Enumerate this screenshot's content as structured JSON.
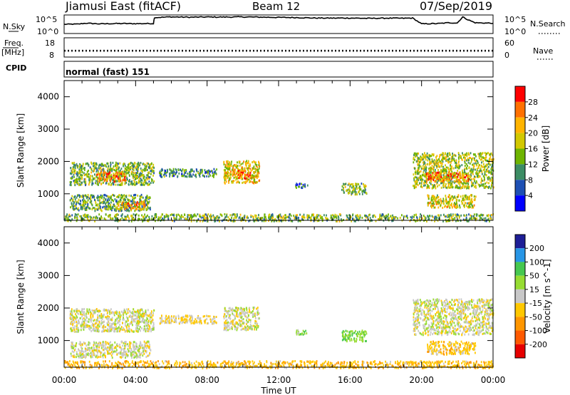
{
  "header": {
    "station": "Jiamusi East (fitACF)",
    "beam": "Beam 12",
    "date": "07/Sep/2019"
  },
  "noise_panel": {
    "left_label": "N.Sky",
    "left_ticks": [
      "10^5",
      "10^0"
    ],
    "right_label": "N.Search",
    "right_ticks": [
      "10^5",
      "10^0"
    ]
  },
  "freq_panel": {
    "left_label_1": "Freq.",
    "left_label_2": "[MHz]",
    "left_ticks": [
      "18",
      "8"
    ],
    "right_label": "Nave",
    "right_ticks": [
      "60",
      "0"
    ]
  },
  "cpid_panel": {
    "label": "CPID",
    "value": "normal (fast) 151"
  },
  "power_panel": {
    "ylabel": "Slant Range [km]",
    "colorbar_label": "Power [dB]",
    "colorbar_ticks": [
      "28",
      "24",
      "20",
      "16",
      "12",
      "8",
      "4"
    ],
    "colorbar_colors": [
      "#ff0000",
      "#ff7000",
      "#ffb400",
      "#d2c800",
      "#6eb400",
      "#3c8c64",
      "#1e50b4",
      "#0000ff"
    ]
  },
  "velocity_panel": {
    "ylabel": "Slant Range [km]",
    "colorbar_label": "Velocity [m s^-1]",
    "colorbar_ticks": [
      "200",
      "100",
      "50",
      "15",
      "-15",
      "-50",
      "-100",
      "-200"
    ],
    "colorbar_colors": [
      "#1e1e96",
      "#2896e6",
      "#46c850",
      "#96dc32",
      "#c8c8c8",
      "#ffc800",
      "#ff9600",
      "#ff5a00",
      "#e60000"
    ]
  },
  "x_axis": {
    "label": "Time UT",
    "ticks": [
      "00:00",
      "04:00",
      "08:00",
      "12:00",
      "16:00",
      "20:00",
      "00:00"
    ]
  },
  "chart_data": [
    {
      "type": "line",
      "title": "N.Sky",
      "y_scale": "log",
      "ylim": [
        1,
        100000
      ],
      "x_hours": [
        0,
        0.8,
        1.2,
        2,
        3,
        4,
        5.0,
        5.05,
        6,
        7,
        8,
        9,
        10,
        11,
        12,
        13,
        14,
        15,
        16,
        17,
        18,
        19,
        19.5,
        20,
        21,
        21.5,
        22,
        22.3,
        22.6,
        23,
        24
      ],
      "values": [
        300,
        350,
        600,
        400,
        500,
        450,
        500,
        20000,
        30000,
        25000,
        28000,
        27000,
        30000,
        26000,
        22000,
        20000,
        15000,
        14000,
        15000,
        12000,
        14000,
        13000,
        15000,
        400,
        500,
        800,
        700,
        30000,
        5000,
        800,
        600
      ]
    },
    {
      "type": "line",
      "title": "Freq. / Nave",
      "x_hours": [
        0,
        24
      ],
      "series": [
        {
          "name": "Freq.",
          "ylim": [
            8,
            18
          ],
          "values": [
            11.5,
            11.5
          ]
        },
        {
          "name": "Nave",
          "ylim": [
            0,
            60
          ],
          "values": [
            18,
            18
          ]
        }
      ]
    },
    {
      "type": "heatmap",
      "title": "Power [dB]",
      "xlabel": "Time UT",
      "ylabel": "Slant Range [km]",
      "xlim": [
        0,
        24
      ],
      "ylim": [
        180,
        4500
      ],
      "y_ticks": [
        1000,
        2000,
        3000,
        4000
      ],
      "colorbar_range": [
        0,
        30
      ],
      "scatter_regions": [
        {
          "t0": 0.3,
          "t1": 5.0,
          "r0": 1300,
          "r1": 2000,
          "typical_db": 12
        },
        {
          "t0": 1.8,
          "t1": 3.4,
          "r0": 1400,
          "r1": 1700,
          "typical_db": 22
        },
        {
          "t0": 0.3,
          "t1": 4.8,
          "r0": 500,
          "r1": 1000,
          "typical_db": 10
        },
        {
          "t0": 3.0,
          "t1": 4.5,
          "r0": 550,
          "r1": 800,
          "typical_db": 20
        },
        {
          "t0": 5.3,
          "t1": 8.5,
          "r0": 1550,
          "r1": 1800,
          "typical_db": 8
        },
        {
          "t0": 8.9,
          "t1": 10.9,
          "r0": 1350,
          "r1": 2050,
          "typical_db": 17
        },
        {
          "t0": 9.7,
          "t1": 10.4,
          "r0": 1500,
          "r1": 1750,
          "typical_db": 26
        },
        {
          "t0": 12.9,
          "t1": 13.6,
          "r0": 1200,
          "r1": 1350,
          "typical_db": 6
        },
        {
          "t0": 15.5,
          "t1": 16.9,
          "r0": 1000,
          "r1": 1350,
          "typical_db": 12
        },
        {
          "t0": 19.5,
          "t1": 24.0,
          "r0": 1200,
          "r1": 2300,
          "typical_db": 14
        },
        {
          "t0": 20.2,
          "t1": 22.6,
          "r0": 1400,
          "r1": 1700,
          "typical_db": 22
        },
        {
          "t0": 20.3,
          "t1": 23.0,
          "r0": 600,
          "r1": 1000,
          "typical_db": 16
        },
        {
          "t0": 0.0,
          "t1": 24.0,
          "r0": 180,
          "r1": 400,
          "typical_db": 12
        }
      ]
    },
    {
      "type": "heatmap",
      "title": "Velocity [m s^-1]",
      "xlabel": "Time UT",
      "ylabel": "Slant Range [km]",
      "xlim": [
        0,
        24
      ],
      "ylim": [
        180,
        4500
      ],
      "y_ticks": [
        1000,
        2000,
        3000,
        4000
      ],
      "colorbar_range": [
        -250,
        250
      ],
      "scatter_regions": [
        {
          "t0": 0.3,
          "t1": 5.0,
          "r0": 1300,
          "r1": 2000,
          "typical_velocity": 0
        },
        {
          "t0": 0.3,
          "t1": 4.8,
          "r0": 500,
          "r1": 1000,
          "typical_velocity": 0
        },
        {
          "t0": 5.3,
          "t1": 8.5,
          "r0": 1550,
          "r1": 1800,
          "typical_velocity": -20
        },
        {
          "t0": 8.9,
          "t1": 10.9,
          "r0": 1350,
          "r1": 2050,
          "typical_velocity": 0
        },
        {
          "t0": 12.9,
          "t1": 13.6,
          "r0": 1200,
          "r1": 1350,
          "typical_velocity": 40
        },
        {
          "t0": 15.5,
          "t1": 16.9,
          "r0": 1000,
          "r1": 1350,
          "typical_velocity": 45
        },
        {
          "t0": 19.5,
          "t1": 24.0,
          "r0": 1200,
          "r1": 2300,
          "typical_velocity": 0
        },
        {
          "t0": 20.3,
          "t1": 23.0,
          "r0": 600,
          "r1": 1000,
          "typical_velocity": -30
        },
        {
          "t0": 0.0,
          "t1": 24.0,
          "r0": 180,
          "r1": 400,
          "typical_velocity": -40
        }
      ]
    }
  ]
}
